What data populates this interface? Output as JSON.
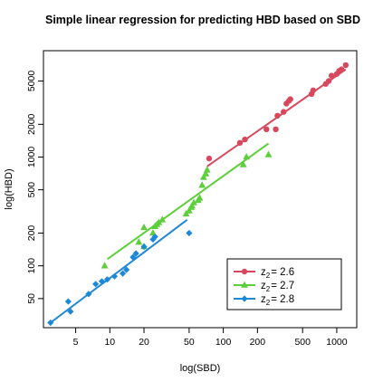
{
  "chart_data": {
    "type": "scatter",
    "title": "Simple linear regression for predicting HBD based on SBD",
    "xlabel": "log(SBD)",
    "ylabel": "log(HBD)",
    "x_scale": "log",
    "y_scale": "log",
    "xlim": [
      2.6,
      1500
    ],
    "ylim": [
      27,
      9500
    ],
    "x_ticks": [
      5,
      10,
      20,
      50,
      100,
      200,
      500,
      1000
    ],
    "y_ticks": [
      50,
      100,
      200,
      500,
      1000,
      2000,
      5000
    ],
    "grid": false,
    "legend_position": "bottom-right",
    "series": [
      {
        "name_prefix": "z",
        "name_sub": "2",
        "name_value": "= 2.6",
        "color": "#d9475c",
        "marker": "circle",
        "points": [
          [
            75,
            970
          ],
          [
            140,
            1350
          ],
          [
            155,
            1450
          ],
          [
            240,
            1800
          ],
          [
            290,
            1800
          ],
          [
            300,
            2400
          ],
          [
            340,
            2600
          ],
          [
            360,
            3100
          ],
          [
            380,
            3300
          ],
          [
            390,
            3400
          ],
          [
            600,
            3800
          ],
          [
            620,
            4100
          ],
          [
            800,
            4700
          ],
          [
            850,
            5000
          ],
          [
            900,
            5600
          ],
          [
            1000,
            5800
          ],
          [
            1050,
            6200
          ],
          [
            1100,
            6400
          ],
          [
            1200,
            7000
          ]
        ],
        "line": [
          [
            72,
            820
          ],
          [
            1200,
            6400
          ]
        ]
      },
      {
        "name_prefix": "z",
        "name_sub": "2",
        "name_value": "= 2.7",
        "color": "#5ccf3a",
        "marker": "triangle",
        "points": [
          [
            9,
            100
          ],
          [
            18,
            165
          ],
          [
            20,
            150
          ],
          [
            20,
            225
          ],
          [
            24,
            200
          ],
          [
            25,
            230
          ],
          [
            26,
            240
          ],
          [
            27,
            250
          ],
          [
            29,
            265
          ],
          [
            47,
            300
          ],
          [
            50,
            320
          ],
          [
            52,
            345
          ],
          [
            53,
            355
          ],
          [
            55,
            380
          ],
          [
            60,
            400
          ],
          [
            62,
            420
          ],
          [
            65,
            550
          ],
          [
            67,
            650
          ],
          [
            70,
            700
          ],
          [
            72,
            760
          ],
          [
            150,
            850
          ],
          [
            160,
            1000
          ],
          [
            250,
            1050
          ]
        ],
        "line": [
          [
            9.5,
            115
          ],
          [
            250,
            1330
          ]
        ]
      },
      {
        "name_prefix": "z",
        "name_sub": "2",
        "name_value": "= 2.8",
        "color": "#1e88d8",
        "marker": "diamond",
        "points": [
          [
            3,
            30
          ],
          [
            4.3,
            47
          ],
          [
            4.5,
            38
          ],
          [
            6.5,
            55
          ],
          [
            7.5,
            68
          ],
          [
            8.5,
            72
          ],
          [
            9.5,
            75
          ],
          [
            11,
            80
          ],
          [
            13,
            85
          ],
          [
            14,
            92
          ],
          [
            16,
            120
          ],
          [
            17,
            130
          ],
          [
            20,
            150
          ],
          [
            24,
            175
          ],
          [
            25,
            185
          ],
          [
            50,
            200
          ]
        ],
        "line": [
          [
            3,
            30
          ],
          [
            48,
            265
          ]
        ]
      }
    ]
  }
}
